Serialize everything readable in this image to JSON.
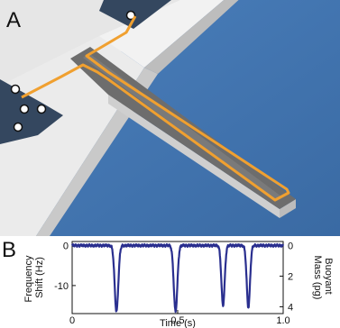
{
  "panel_a": {
    "letter": "A",
    "colors": {
      "background": "#3f72ad",
      "substrate": "#d9d9d9",
      "cantilever": "#6d6d6d",
      "channel": "#f0a030",
      "pad": "#34475f"
    }
  },
  "panel_b": {
    "letter": "B",
    "chart_data": {
      "type": "line",
      "xlabel": "Time (s)",
      "ylabel": "Frequency Shift (Hz)",
      "ylabel_lines": [
        "Frequency",
        "Shift (Hz)"
      ],
      "y2label": "Buoyant Mass (pg)",
      "y2label_lines": [
        "Buoyant",
        "Mass (pg)"
      ],
      "xlim": [
        0,
        1.0
      ],
      "ylim": [
        -17,
        1
      ],
      "x_ticks": [
        "0",
        "0.5",
        "1.0"
      ],
      "y_ticks": [
        "0",
        "-10"
      ],
      "y2_ticks": [
        "0",
        "2",
        "4"
      ],
      "series": [
        {
          "color": "#2a2f8f",
          "baseline": 0,
          "dips": [
            {
              "time": 0.21,
              "depth": -16.5,
              "width": 0.012
            },
            {
              "time": 0.49,
              "depth": -16.5,
              "width": 0.012
            },
            {
              "time": 0.715,
              "depth": -15.0,
              "width": 0.011
            },
            {
              "time": 0.835,
              "depth": -15.5,
              "width": 0.011
            }
          ]
        }
      ]
    }
  }
}
